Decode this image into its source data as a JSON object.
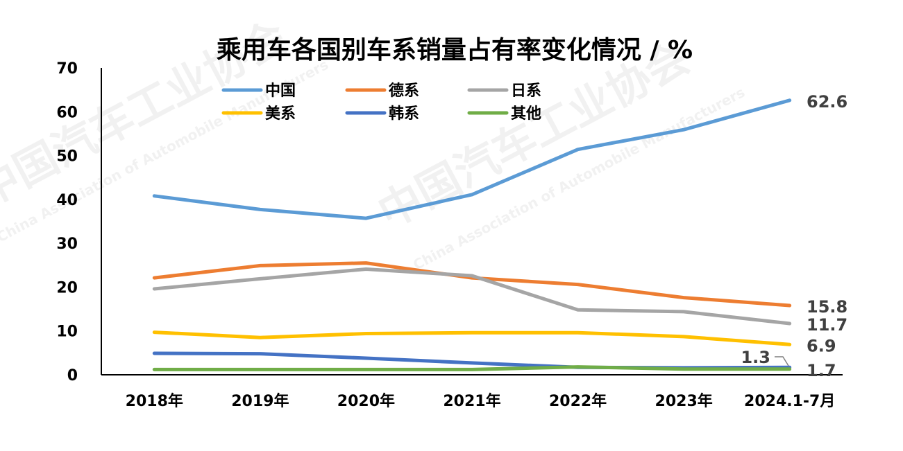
{
  "chart_data": {
    "type": "line",
    "title": "乘用车各国别车系销量占有率变化情况 / %",
    "xlabel": "",
    "ylabel": "",
    "categories": [
      "2018年",
      "2019年",
      "2020年",
      "2021年",
      "2022年",
      "2023年",
      "2024.1-7月"
    ],
    "ylim": [
      0,
      70
    ],
    "yticks": [
      0,
      10,
      20,
      30,
      40,
      50,
      60,
      70
    ],
    "grid": false,
    "legend_placement": "top-left",
    "series": [
      {
        "name": "中国",
        "color": "#5B9BD5",
        "values": [
          40.8,
          37.7,
          35.7,
          41.1,
          51.4,
          55.9,
          62.6
        ],
        "end_label": "62.6"
      },
      {
        "name": "德系",
        "color": "#ED7D31",
        "values": [
          22.1,
          24.9,
          25.5,
          22.1,
          20.6,
          17.6,
          15.8
        ],
        "end_label": "15.8"
      },
      {
        "name": "日系",
        "color": "#A5A5A5",
        "values": [
          19.6,
          21.9,
          24.1,
          22.6,
          14.8,
          14.4,
          11.7
        ],
        "end_label": "11.7"
      },
      {
        "name": "美系",
        "color": "#FFC000",
        "values": [
          9.7,
          8.5,
          9.4,
          9.6,
          9.6,
          8.7,
          6.9
        ],
        "end_label": "6.9"
      },
      {
        "name": "韩系",
        "color": "#4472C4",
        "values": [
          4.9,
          4.8,
          3.8,
          2.7,
          1.7,
          1.6,
          1.7
        ],
        "end_label": "1.7"
      },
      {
        "name": "其他",
        "color": "#70AD47",
        "values": [
          1.2,
          1.2,
          1.2,
          1.2,
          1.8,
          1.3,
          1.3
        ],
        "end_label": "1.3"
      }
    ],
    "watermark": {
      "cn": "中国汽车工业协会",
      "en": "China Association of Automobile Manufacturers"
    }
  }
}
